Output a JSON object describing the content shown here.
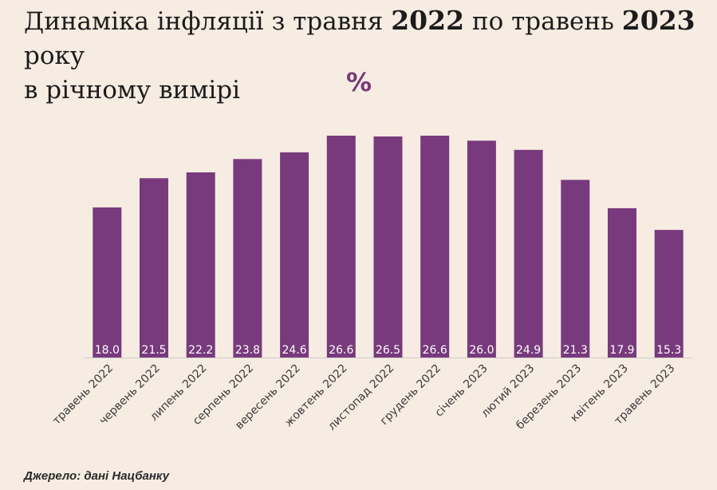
{
  "title": {
    "part1": "Динаміка інфляції з травня ",
    "year1": "2022",
    "part2": " по травень ",
    "year2": "2023",
    "part3": " року",
    "line2": "в річному вимірі"
  },
  "unit_label": "%",
  "source": "Джерело: дані Нацбанку",
  "colors": {
    "bar": "#783a7c",
    "background": "#f6ece2",
    "axis": "#cccccc",
    "bar_label": "#ffffff"
  },
  "chart_data": {
    "type": "bar",
    "categories": [
      "травень 2022",
      "червень 2022",
      "липень 2022",
      "серпень 2022",
      "вересень 2022",
      "жовтень 2022",
      "листопад 2022",
      "грудень 2022",
      "січень 2023",
      "лютий 2023",
      "березень 2023",
      "квітень 2023",
      "травень 2023"
    ],
    "values": [
      18.0,
      21.5,
      22.2,
      23.8,
      24.6,
      26.6,
      26.5,
      26.6,
      26.0,
      24.9,
      21.3,
      17.9,
      15.3
    ],
    "value_labels": [
      "18.0",
      "21.5",
      "22.2",
      "23.8",
      "24.6",
      "26.6",
      "26.5",
      "26.6",
      "26.0",
      "24.9",
      "21.3",
      "17.9",
      "15.3"
    ],
    "ylim": [
      0,
      26.6
    ],
    "grid": false,
    "legend": "none"
  }
}
